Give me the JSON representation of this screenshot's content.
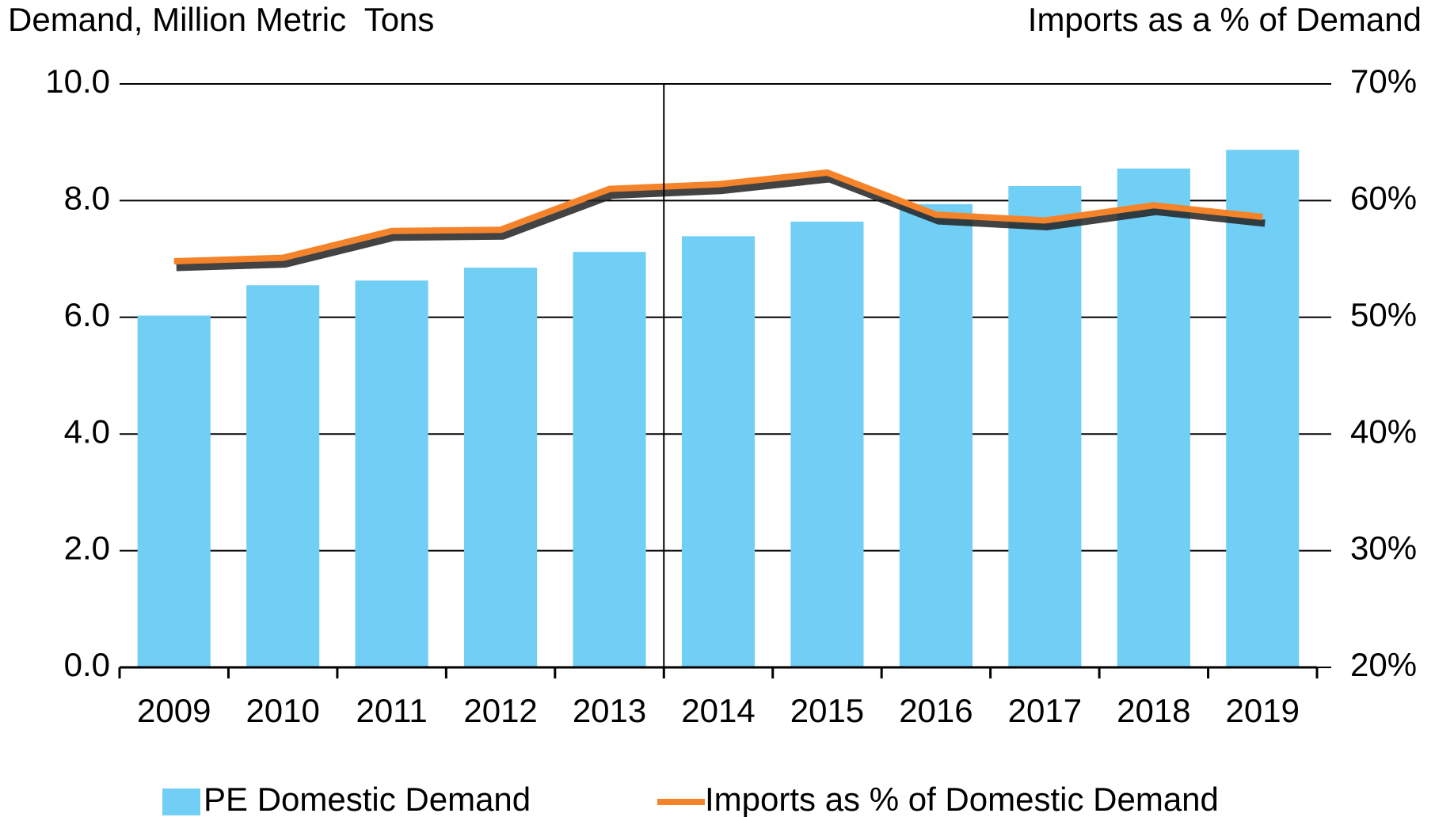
{
  "chart_data": {
    "type": "bar_line",
    "y_axis_title": "Demand, Million Metric  Tons",
    "y2_axis_title": "Imports as a % of Demand",
    "categories": [
      "2009",
      "2010",
      "2011",
      "2012",
      "2013",
      "2014",
      "2015",
      "2016",
      "2017",
      "2018",
      "2019"
    ],
    "series": [
      {
        "name": "PE Domestic Demand",
        "type": "bar",
        "color": "#71cef4",
        "values": [
          6.03,
          6.55,
          6.63,
          6.85,
          7.12,
          7.39,
          7.64,
          7.94,
          8.25,
          8.55,
          8.87
        ]
      },
      {
        "name": "Imports as % of Domestic Demand",
        "type": "line",
        "axis": "y2",
        "color": "#f5832a",
        "values": [
          54.8,
          55.1,
          57.4,
          57.5,
          61.0,
          61.4,
          62.4,
          58.8,
          58.3,
          59.6,
          58.6
        ]
      }
    ],
    "ylim": [
      0,
      10
    ],
    "yticks": [
      {
        "value": 0,
        "label": "0.0"
      },
      {
        "value": 2,
        "label": "2.0"
      },
      {
        "value": 4,
        "label": "4.0"
      },
      {
        "value": 6,
        "label": "6.0"
      },
      {
        "value": 8,
        "label": "8.0"
      },
      {
        "value": 10,
        "label": "10.0"
      }
    ],
    "y2lim": [
      20,
      70
    ],
    "y2ticks": [
      {
        "value": 20,
        "label": "20%"
      },
      {
        "value": 30,
        "label": "30%"
      },
      {
        "value": 40,
        "label": "40%"
      },
      {
        "value": 50,
        "label": "50%"
      },
      {
        "value": 60,
        "label": "60%"
      },
      {
        "value": 70,
        "label": "70%"
      }
    ],
    "grid": true
  }
}
